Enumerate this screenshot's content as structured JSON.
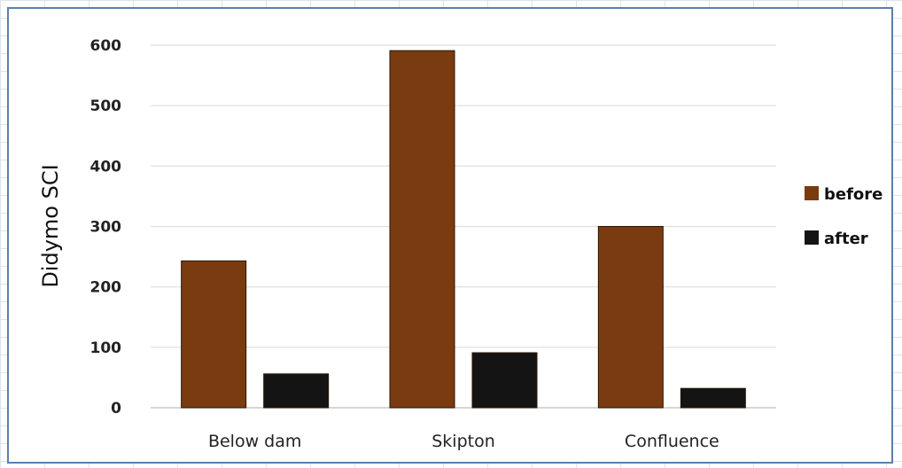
{
  "chart_data": {
    "type": "bar",
    "title": "",
    "xlabel": "",
    "ylabel": "Didymo SCI",
    "categories": [
      "Below dam",
      "Skipton",
      "Confluence"
    ],
    "series": [
      {
        "name": "before",
        "color": "#7a3b10",
        "values": [
          243,
          591,
          300
        ]
      },
      {
        "name": "after",
        "color": "#141414",
        "values": [
          56,
          91,
          32
        ]
      }
    ],
    "ylim": [
      0,
      600
    ],
    "yticks": [
      0,
      100,
      200,
      300,
      400,
      500,
      600
    ],
    "grid": true,
    "legend_position": "right"
  }
}
